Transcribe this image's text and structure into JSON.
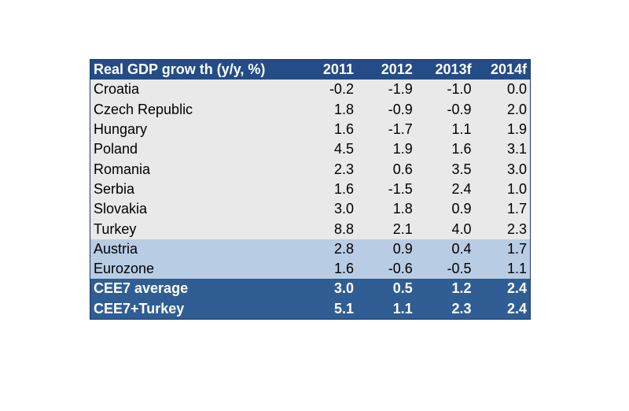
{
  "chart_data": {
    "type": "table",
    "columns": [
      "Real GDP grow th (y/y, %)",
      "2011",
      "2012",
      "2013f",
      "2014f"
    ],
    "rows": [
      {
        "label": "Croatia",
        "group": "country",
        "values": [
          "-0.2",
          "-1.9",
          "-1.0",
          "0.0"
        ]
      },
      {
        "label": "Czech Republic",
        "group": "country",
        "values": [
          "1.8",
          "-0.9",
          "-0.9",
          "2.0"
        ]
      },
      {
        "label": "Hungary",
        "group": "country",
        "values": [
          "1.6",
          "-1.7",
          "1.1",
          "1.9"
        ]
      },
      {
        "label": "Poland",
        "group": "country",
        "values": [
          "4.5",
          "1.9",
          "1.6",
          "3.1"
        ]
      },
      {
        "label": "Romania",
        "group": "country",
        "values": [
          "2.3",
          "0.6",
          "3.5",
          "3.0"
        ]
      },
      {
        "label": "Serbia",
        "group": "country",
        "values": [
          "1.6",
          "-1.5",
          "2.4",
          "1.0"
        ]
      },
      {
        "label": "Slovakia",
        "group": "country",
        "values": [
          "3.0",
          "1.8",
          "0.9",
          "1.7"
        ]
      },
      {
        "label": "Turkey",
        "group": "country",
        "values": [
          "8.8",
          "2.1",
          "4.0",
          "2.3"
        ]
      },
      {
        "label": "Austria",
        "group": "reference",
        "values": [
          "2.8",
          "0.9",
          "0.4",
          "1.7"
        ]
      },
      {
        "label": "Eurozone",
        "group": "reference",
        "values": [
          "1.6",
          "-0.6",
          "-0.5",
          "1.1"
        ]
      },
      {
        "label": "CEE7 average",
        "group": "aggregate",
        "values": [
          "3.0",
          "0.5",
          "1.2",
          "2.4"
        ]
      },
      {
        "label": "CEE7+Turkey",
        "group": "aggregate",
        "values": [
          "5.1",
          "1.1",
          "2.3",
          "2.4"
        ]
      }
    ]
  },
  "colors": {
    "header_bg": "#244c87",
    "country_bg": "#e9e9e9",
    "reference_bg": "#b8cde4",
    "aggregate_bg": "#2f5d94"
  }
}
